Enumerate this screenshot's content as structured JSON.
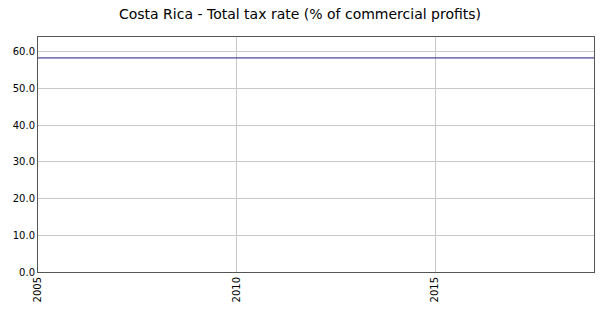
{
  "chart_data": {
    "type": "line",
    "title": "Costa Rica - Total tax rate (% of commercial profits)",
    "x": [
      2005,
      2006,
      2007,
      2008,
      2009,
      2010,
      2011,
      2012,
      2013,
      2014,
      2015,
      2016,
      2017,
      2018,
      2019
    ],
    "values": [
      58.3,
      58.3,
      58.3,
      58.3,
      58.3,
      58.3,
      58.3,
      58.5,
      58.3,
      58.3,
      58.3,
      58.3,
      58.3,
      58.3,
      58.3
    ],
    "color": "#1a1a80",
    "xlim": [
      2005,
      2019
    ],
    "xticks": [
      2005,
      2010,
      2015
    ],
    "ylim": [
      0,
      64
    ],
    "yticks": [
      {
        "value": 0,
        "label": "0.0"
      },
      {
        "value": 10,
        "label": "10.0"
      },
      {
        "value": 20,
        "label": "20.0"
      },
      {
        "value": 30,
        "label": "30.0"
      },
      {
        "value": 40,
        "label": "40.0"
      },
      {
        "value": 50,
        "label": "50.0"
      },
      {
        "value": 60,
        "label": "60.0"
      }
    ],
    "grid": true
  }
}
